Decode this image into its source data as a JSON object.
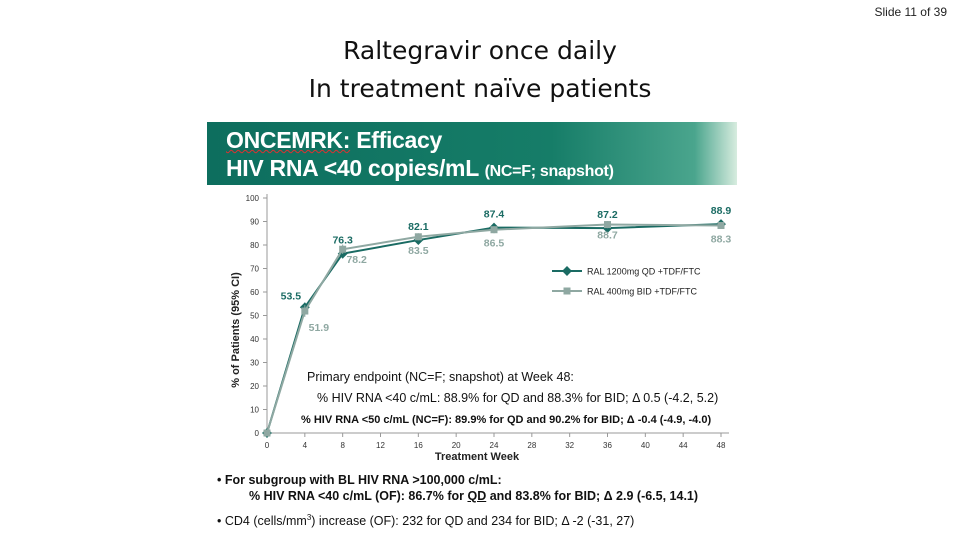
{
  "slide_number": "Slide 11 of 39",
  "title_line1": "Raltegravir once daily",
  "title_line2": "In treatment naïve patients",
  "banner": {
    "word1": "ONCEMRK:",
    "word2": "Efficacy",
    "line2_main": "HIV RNA <40 copies/mL",
    "line2_small": "(NC=F; snapshot)"
  },
  "colors": {
    "banner": "#0d6e5e",
    "series_qd": "#1a6b63",
    "series_bid": "#8fa8a2"
  },
  "chart_data": {
    "type": "line",
    "ylabel": "% of Patients (95% CI)",
    "xlabel": "Treatment Week",
    "xticks": [
      0,
      4,
      8,
      12,
      16,
      20,
      24,
      28,
      32,
      36,
      40,
      44,
      48
    ],
    "yticks": [
      0,
      10,
      20,
      30,
      40,
      50,
      60,
      70,
      80,
      90,
      100
    ],
    "xlim": [
      0,
      48
    ],
    "ylim": [
      0,
      100
    ],
    "legend_position": "right-middle",
    "series": [
      {
        "name": "RAL 1200mg QD +TDF/FTC",
        "x": [
          0,
          4,
          8,
          16,
          24,
          36,
          48
        ],
        "y": [
          0,
          53.5,
          76.3,
          82.1,
          87.4,
          87.2,
          88.9
        ],
        "labels": [
          "",
          "53.5",
          "76.3",
          "82.1",
          "87.4",
          "87.2",
          "88.9"
        ]
      },
      {
        "name": "RAL 400mg BID +TDF/FTC",
        "x": [
          0,
          4,
          8,
          16,
          24,
          36,
          48
        ],
        "y": [
          0,
          51.9,
          78.2,
          83.5,
          86.5,
          88.7,
          88.3
        ],
        "labels": [
          "",
          "51.9",
          "78.2",
          "83.5",
          "86.5",
          "88.7",
          "88.3"
        ]
      }
    ],
    "annotation": {
      "line1": "Primary endpoint (NC=F; snapshot) at Week 48:",
      "line2": "% HIV RNA <40 c/mL: 88.9% for QD and 88.3% for BID; Δ 0.5 (-4.2, 5.2)",
      "line3": "% HIV RNA <50 c/mL (NC=F): 89.9% for QD and 90.2% for BID; Δ -0.4 (-4.9, -4.0)"
    }
  },
  "bullets": {
    "b1_line1": "For subgroup with BL HIV RNA >100,000 c/mL:",
    "b1_line2_a": "% HIV RNA <40 c/mL (OF):  86.7% for ",
    "b1_line2_qd": "QD",
    "b1_line2_b": " and 83.8% for BID; Δ 2.9 (-6.5, 14.1)",
    "b2_a": "CD4 (cells/mm",
    "b2_sup": "3",
    "b2_b": ") increase (OF):  232 for QD and 234 for BID; Δ -2 (-31, 27)"
  }
}
